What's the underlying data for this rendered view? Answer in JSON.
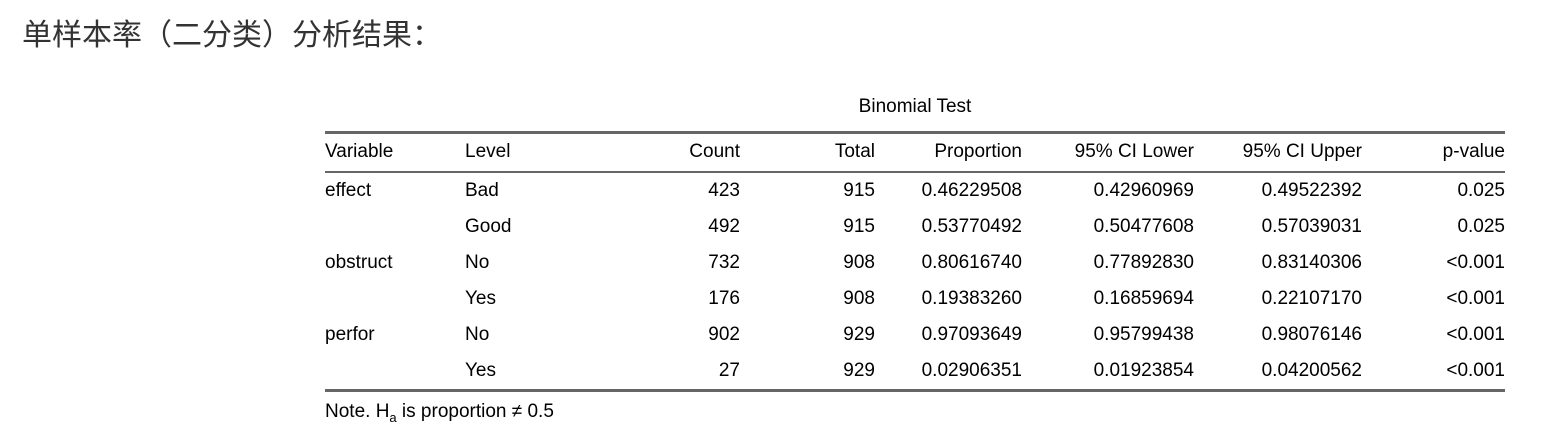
{
  "page_title": "单样本率（二分类）分析结果：",
  "table": {
    "caption": "Binomial Test",
    "columns": [
      {
        "id": "variable",
        "label": "Variable",
        "align": "left"
      },
      {
        "id": "level",
        "label": "Level",
        "align": "left"
      },
      {
        "id": "count",
        "label": "Count",
        "align": "right"
      },
      {
        "id": "total",
        "label": "Total",
        "align": "right"
      },
      {
        "id": "proportion",
        "label": "Proportion",
        "align": "right"
      },
      {
        "id": "ci-lower",
        "label": "95% CI Lower",
        "align": "right"
      },
      {
        "id": "ci-upper",
        "label": "95% CI Upper",
        "align": "right"
      },
      {
        "id": "p-value",
        "label": "p-value",
        "align": "right"
      }
    ],
    "rows": [
      [
        "effect",
        "Bad",
        "423",
        "915",
        "0.46229508",
        "0.42960969",
        "0.49522392",
        "0.025"
      ],
      [
        "",
        "Good",
        "492",
        "915",
        "0.53770492",
        "0.50477608",
        "0.57039031",
        "0.025"
      ],
      [
        "obstruct",
        "No",
        "732",
        "908",
        "0.80616740",
        "0.77892830",
        "0.83140306",
        "<0.001"
      ],
      [
        "",
        "Yes",
        "176",
        "908",
        "0.19383260",
        "0.16859694",
        "0.22107170",
        "<0.001"
      ],
      [
        "perfor",
        "No",
        "902",
        "929",
        "0.97093649",
        "0.95799438",
        "0.98076146",
        "<0.001"
      ],
      [
        "",
        "Yes",
        "27",
        "929",
        "0.02906351",
        "0.01923854",
        "0.04200562",
        "<0.001"
      ]
    ],
    "note": {
      "prefix": "Note. H",
      "subscript": "a",
      "suffix": " is proportion ≠ 0.5"
    }
  },
  "colors": {
    "border": "#666666",
    "title_text": "#333333",
    "body_text": "#000000"
  }
}
